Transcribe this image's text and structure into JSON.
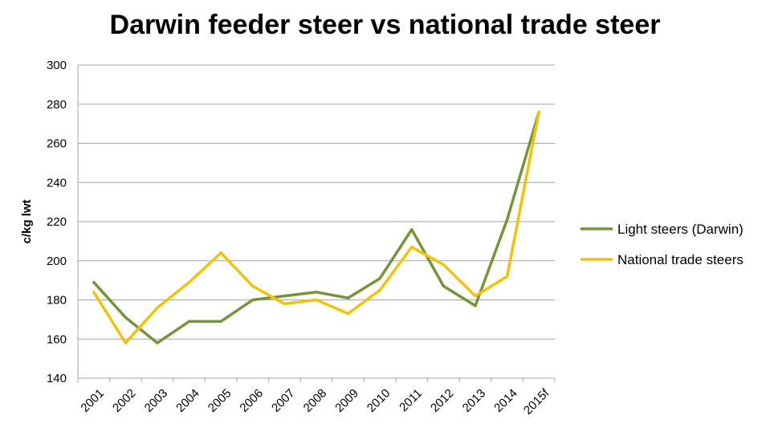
{
  "chart_data": {
    "type": "line",
    "title": "Darwin feeder steer vs national trade steer",
    "xlabel": "",
    "ylabel": "c/kg lwt",
    "ylim": [
      140,
      300
    ],
    "yticks": [
      140,
      160,
      180,
      200,
      220,
      240,
      260,
      280,
      300
    ],
    "grid": true,
    "legend_position": "right",
    "categories": [
      "2001",
      "2002",
      "2003",
      "2004",
      "2005",
      "2006",
      "2007",
      "2008",
      "2009",
      "2010",
      "2011",
      "2012",
      "2013",
      "2014",
      "2015f"
    ],
    "series": [
      {
        "name": "Light steers (Darwin)",
        "color": "#77933c",
        "values": [
          189,
          171,
          158,
          169,
          169,
          180,
          182,
          184,
          181,
          191,
          216,
          187,
          177,
          221,
          276
        ]
      },
      {
        "name": "National trade steers",
        "color": "#f0c20c",
        "values": [
          184,
          158,
          176,
          189,
          204,
          187,
          178,
          180,
          173,
          185,
          207,
          198,
          182,
          192,
          276
        ]
      }
    ]
  }
}
